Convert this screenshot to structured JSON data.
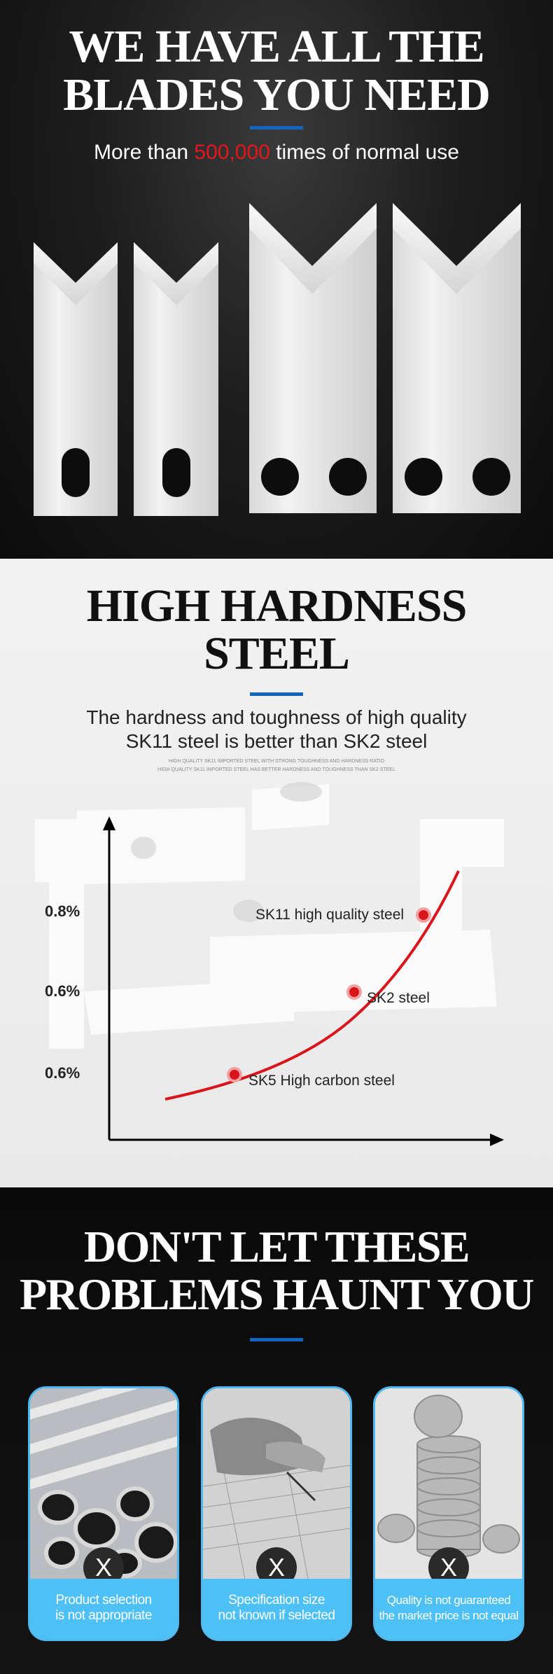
{
  "section1": {
    "title_line1": "WE HAVE ALL THE",
    "title_line2": "BLADES YOU NEED",
    "subtitle_before": "More than ",
    "subtitle_highlight": "500,000",
    "subtitle_after": " times of normal use",
    "accent_color": "#1565c0",
    "highlight_color": "#e4161c"
  },
  "section2": {
    "title_line1": "HIGH HARDNESS",
    "title_line2": "STEEL",
    "subtitle_line1": "The hardness and toughness of high quality",
    "subtitle_line2": "SK11 steel is better than SK2 steel",
    "small_line1": "HIGH QUALITY SK11 IMPORTED STEEL WITH STRONG TOUGHNESS AND HARDNESS RATIO",
    "small_line2": "HIGH QUALITY SK11 IMPORTED STEEL HAS BETTER HARDNESS AND TOUGHNESS THAN SK2 STEEL",
    "y_labels": [
      "0.8%",
      "0.6%",
      "0.6%"
    ],
    "points": [
      {
        "label": "SK11 high quality steel"
      },
      {
        "label": "SK2 steel"
      },
      {
        "label": "SK5 High carbon steel"
      }
    ],
    "curve_color": "#d9141b"
  },
  "section3": {
    "title_line1": "DON'T LET THESE",
    "title_line2": "PROBLEMS HAUNT YOU",
    "cards": [
      {
        "caption_line1": "Product selection",
        "caption_line2": "is not appropriate",
        "mark": "X",
        "icon": "steel-pipes-icon"
      },
      {
        "caption_line1": "Specification size",
        "caption_line2": "not known if selected",
        "mark": "X",
        "icon": "drawing-hand-icon"
      },
      {
        "caption_line1": "Quality is not guaranteed",
        "caption_line2": "the market price is not equal",
        "mark": "X",
        "icon": "coin-stack-icon"
      }
    ],
    "card_border_color": "#4fb8ee",
    "caption_bg_color": "#4dc0f5"
  }
}
